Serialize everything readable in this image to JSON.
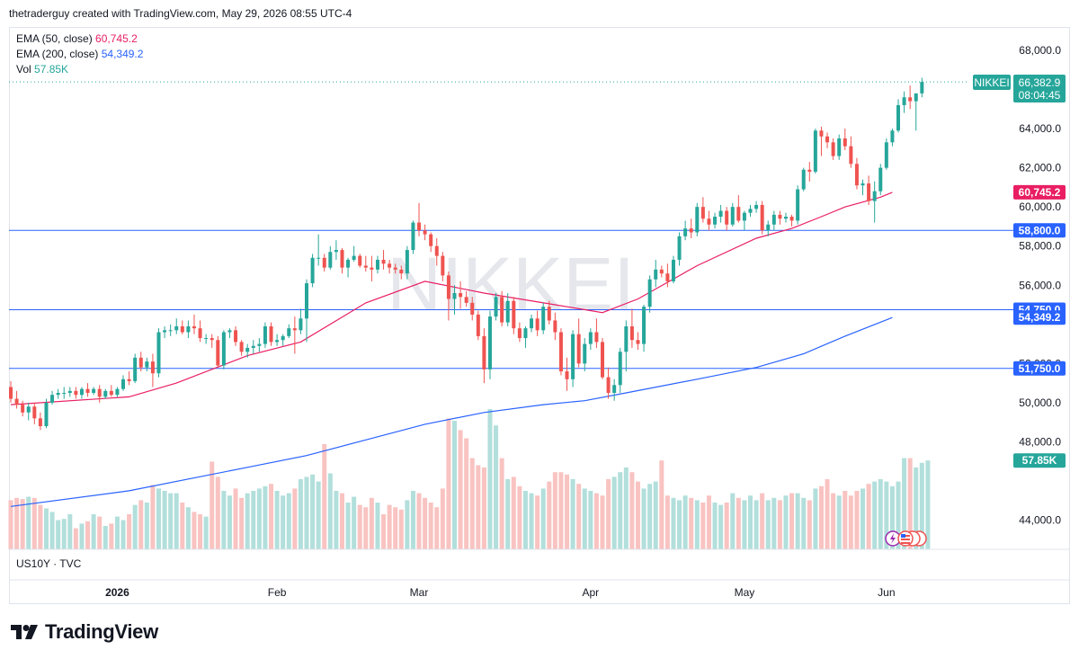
{
  "header": {
    "attribution": "thetraderguy created with TradingView.com, May 29, 2026 08:55 UTC-4"
  },
  "legend": {
    "ema50_label": "EMA (50, close)",
    "ema50_value": "60,745.2",
    "ema50_color": "#e91e63",
    "ema200_label": "EMA (200, close)",
    "ema200_value": "54,349.2",
    "ema200_color": "#2962ff",
    "vol_label": "Vol",
    "vol_value": "57.85K",
    "vol_color": "#26a69a"
  },
  "sub_pane": {
    "label": "US10Y · TVC"
  },
  "watermark": "NIKKEI",
  "brand": {
    "name": "TradingView"
  },
  "price_badge": {
    "symbol": "NIKKEI",
    "price": "66,382.9",
    "countdown": "08:04:45"
  },
  "chart_data": {
    "type": "candlestick",
    "symbol": "NIKKEI",
    "y_axis": {
      "ticks": [
        44000,
        48000,
        50000,
        52000,
        56000,
        58000,
        60000,
        62000,
        64000,
        68000
      ],
      "ylim": [
        43000,
        69000
      ],
      "side": "right"
    },
    "x_axis": {
      "ticks": [
        "2026",
        "Feb",
        "Mar",
        "Apr",
        "May",
        "Jun"
      ]
    },
    "colors": {
      "up": "#26a69a",
      "down": "#ef5350",
      "ema50": "#e91e63",
      "ema200": "#2962ff",
      "hline": "#2962ff"
    },
    "horizontal_lines": [
      {
        "value": 58800,
        "label": "58,800.0"
      },
      {
        "value": 54750,
        "label": "54,750.0"
      },
      {
        "value": 51750,
        "label": "51,750.0"
      }
    ],
    "markers": [
      {
        "value": 60745.2,
        "label": "60,745.2",
        "color": "#e91e63"
      },
      {
        "value": 54349.2,
        "label": "54,349.2",
        "color": "#2962ff"
      },
      {
        "value": 57850,
        "label": "57.85K",
        "color": "#26a69a"
      }
    ],
    "last_price": 66382.9,
    "ohlc": [
      [
        50800,
        51100,
        50000,
        50200
      ],
      [
        50200,
        50600,
        49700,
        49900
      ],
      [
        49900,
        50100,
        49300,
        49500
      ],
      [
        49500,
        50000,
        49100,
        49800
      ],
      [
        49800,
        50000,
        48900,
        49200
      ],
      [
        49200,
        49500,
        48600,
        48800
      ],
      [
        48800,
        50200,
        48700,
        50000
      ],
      [
        50000,
        50600,
        49900,
        50400
      ],
      [
        50400,
        50700,
        50200,
        50500
      ],
      [
        50500,
        50800,
        50200,
        50500
      ],
      [
        50500,
        50800,
        50300,
        50600
      ],
      [
        50600,
        50800,
        50200,
        50400
      ],
      [
        50400,
        50800,
        50200,
        50700
      ],
      [
        50700,
        51000,
        50300,
        50500
      ],
      [
        50500,
        50800,
        50400,
        50700
      ],
      [
        50700,
        50900,
        50000,
        50300
      ],
      [
        50300,
        50700,
        50200,
        50600
      ],
      [
        50600,
        50900,
        50300,
        50400
      ],
      [
        50400,
        50800,
        50300,
        50700
      ],
      [
        50700,
        51400,
        50600,
        51200
      ],
      [
        51200,
        51600,
        50900,
        51100
      ],
      [
        51100,
        52500,
        51000,
        52300
      ],
      [
        52300,
        52600,
        51600,
        51800
      ],
      [
        51800,
        52300,
        51600,
        52100
      ],
      [
        52100,
        52500,
        50800,
        51500
      ],
      [
        51500,
        53800,
        51300,
        53600
      ],
      [
        53600,
        53900,
        53300,
        53700
      ],
      [
        53700,
        54000,
        53400,
        53700
      ],
      [
        53700,
        54300,
        53500,
        53900
      ],
      [
        53900,
        54200,
        53500,
        53600
      ],
      [
        53600,
        54200,
        53300,
        53900
      ],
      [
        53900,
        54500,
        53500,
        53800
      ],
      [
        53800,
        54200,
        53100,
        53300
      ],
      [
        53300,
        53500,
        53000,
        53300
      ],
      [
        53300,
        53500,
        52800,
        53200
      ],
      [
        53200,
        53400,
        51800,
        51900
      ],
      [
        51900,
        53700,
        51700,
        53600
      ],
      [
        53600,
        53800,
        53300,
        53700
      ],
      [
        53700,
        53900,
        52900,
        53100
      ],
      [
        53100,
        53200,
        52400,
        52600
      ],
      [
        52600,
        53000,
        52300,
        52800
      ],
      [
        52800,
        53200,
        52500,
        52900
      ],
      [
        52900,
        53300,
        52600,
        53000
      ],
      [
        53000,
        54100,
        52800,
        53900
      ],
      [
        53900,
        54100,
        52900,
        53100
      ],
      [
        53100,
        53500,
        52900,
        53200
      ],
      [
        53200,
        53500,
        52900,
        53400
      ],
      [
        53400,
        54000,
        53300,
        53800
      ],
      [
        53800,
        54400,
        52500,
        53700
      ],
      [
        53700,
        54800,
        53500,
        54300
      ],
      [
        54300,
        56300,
        53100,
        56100
      ],
      [
        56100,
        57600,
        55900,
        57400
      ],
      [
        57400,
        58600,
        57000,
        57400
      ],
      [
        57400,
        57600,
        56700,
        56900
      ],
      [
        56900,
        58000,
        56800,
        57700
      ],
      [
        57700,
        58300,
        57300,
        57800
      ],
      [
        57800,
        57900,
        56600,
        56900
      ],
      [
        56900,
        57400,
        56400,
        57300
      ],
      [
        57300,
        58000,
        57200,
        57500
      ],
      [
        57500,
        57600,
        56900,
        57000
      ],
      [
        57000,
        57500,
        56700,
        56900
      ],
      [
        56900,
        57500,
        56200,
        56800
      ],
      [
        56800,
        57500,
        56600,
        57300
      ],
      [
        57300,
        57800,
        56800,
        57100
      ],
      [
        57100,
        57300,
        56600,
        56900
      ],
      [
        56900,
        57100,
        56600,
        56800
      ],
      [
        56800,
        57000,
        56300,
        56600
      ],
      [
        56600,
        58000,
        56300,
        57800
      ],
      [
        57800,
        59300,
        57600,
        59200
      ],
      [
        59200,
        60200,
        58500,
        58800
      ],
      [
        58800,
        59100,
        58300,
        58600
      ],
      [
        58600,
        58700,
        57700,
        58000
      ],
      [
        58000,
        58400,
        57000,
        57500
      ],
      [
        57500,
        57700,
        56200,
        56500
      ],
      [
        56500,
        56700,
        54200,
        55300
      ],
      [
        55300,
        56000,
        54500,
        55600
      ],
      [
        55600,
        56200,
        54800,
        55400
      ],
      [
        55400,
        55700,
        54900,
        55100
      ],
      [
        55100,
        55400,
        54200,
        54500
      ],
      [
        54500,
        54700,
        53200,
        53400
      ],
      [
        53400,
        53800,
        51000,
        51700
      ],
      [
        51700,
        54700,
        51200,
        54400
      ],
      [
        54400,
        55600,
        54200,
        55400
      ],
      [
        55400,
        55700,
        53900,
        54100
      ],
      [
        54100,
        55600,
        53900,
        55200
      ],
      [
        55200,
        55400,
        53500,
        53800
      ],
      [
        53800,
        54100,
        53100,
        53300
      ],
      [
        53300,
        53900,
        52800,
        53800
      ],
      [
        53800,
        54500,
        53600,
        54300
      ],
      [
        54300,
        54700,
        53400,
        53700
      ],
      [
        53700,
        55100,
        53500,
        54900
      ],
      [
        54900,
        55200,
        54000,
        54200
      ],
      [
        54200,
        54600,
        53200,
        53600
      ],
      [
        53600,
        53800,
        51400,
        51600
      ],
      [
        51600,
        52300,
        50600,
        51200
      ],
      [
        51200,
        53700,
        50800,
        53500
      ],
      [
        53500,
        54300,
        51800,
        52000
      ],
      [
        52000,
        53300,
        51600,
        53000
      ],
      [
        53000,
        53800,
        52700,
        53600
      ],
      [
        53600,
        54300,
        52800,
        53100
      ],
      [
        53100,
        53300,
        51200,
        51300
      ],
      [
        51300,
        51800,
        50200,
        50500
      ],
      [
        50500,
        51200,
        50100,
        50900
      ],
      [
        50900,
        52800,
        50500,
        52600
      ],
      [
        52600,
        54200,
        51600,
        53900
      ],
      [
        53900,
        54800,
        52800,
        53200
      ],
      [
        53200,
        53600,
        52700,
        53000
      ],
      [
        53000,
        55000,
        52600,
        54900
      ],
      [
        54900,
        56500,
        54600,
        56300
      ],
      [
        56300,
        57300,
        55900,
        56800
      ],
      [
        56800,
        57000,
        56400,
        56600
      ],
      [
        56600,
        57100,
        55900,
        56200
      ],
      [
        56200,
        57500,
        56100,
        57300
      ],
      [
        57300,
        58700,
        57000,
        58500
      ],
      [
        58500,
        59300,
        58300,
        58900
      ],
      [
        58900,
        59400,
        58400,
        58700
      ],
      [
        58700,
        60200,
        58500,
        60000
      ],
      [
        60000,
        60500,
        59200,
        59400
      ],
      [
        59400,
        59800,
        58800,
        59100
      ],
      [
        59100,
        59700,
        58900,
        59500
      ],
      [
        59500,
        60100,
        59200,
        59800
      ],
      [
        59800,
        60000,
        58800,
        59100
      ],
      [
        59100,
        60200,
        59000,
        60000
      ],
      [
        60000,
        60600,
        59200,
        59300
      ],
      [
        59300,
        59800,
        58800,
        59700
      ],
      [
        59700,
        60100,
        59500,
        59900
      ],
      [
        59900,
        60300,
        59700,
        60100
      ],
      [
        60100,
        60300,
        58600,
        58800
      ],
      [
        58800,
        59300,
        58500,
        59100
      ],
      [
        59100,
        59800,
        58800,
        59600
      ],
      [
        59600,
        59800,
        59100,
        59400
      ],
      [
        59400,
        59700,
        59200,
        59500
      ],
      [
        59500,
        59600,
        59000,
        59300
      ],
      [
        59300,
        61100,
        59100,
        60900
      ],
      [
        60900,
        62000,
        60800,
        61900
      ],
      [
        61900,
        62300,
        61300,
        61800
      ],
      [
        61800,
        64000,
        61700,
        63900
      ],
      [
        63900,
        64100,
        62600,
        63600
      ],
      [
        63600,
        63800,
        63000,
        63300
      ],
      [
        63300,
        63500,
        62400,
        62600
      ],
      [
        62600,
        63700,
        62400,
        63500
      ],
      [
        63500,
        64000,
        62900,
        63100
      ],
      [
        63100,
        63600,
        62000,
        62200
      ],
      [
        62200,
        62500,
        60900,
        61100
      ],
      [
        61100,
        61400,
        60600,
        61200
      ],
      [
        61200,
        61600,
        60100,
        60300
      ],
      [
        60300,
        61300,
        59200,
        60800
      ],
      [
        60800,
        62200,
        60600,
        62000
      ],
      [
        62000,
        63500,
        61900,
        63300
      ],
      [
        63300,
        64000,
        63100,
        63900
      ],
      [
        63900,
        65500,
        63800,
        65200
      ],
      [
        65200,
        65900,
        64800,
        65600
      ],
      [
        65600,
        66200,
        65000,
        65400
      ],
      [
        65400,
        65800,
        63900,
        65800
      ],
      [
        65800,
        66600,
        65600,
        66382.9
      ]
    ],
    "volumes": [
      0.42,
      0.44,
      0.43,
      0.45,
      0.44,
      0.38,
      0.35,
      0.32,
      0.25,
      0.26,
      0.3,
      0.18,
      0.22,
      0.24,
      0.3,
      0.28,
      0.2,
      0.22,
      0.28,
      0.25,
      0.3,
      0.38,
      0.42,
      0.4,
      0.55,
      0.52,
      0.5,
      0.48,
      0.48,
      0.4,
      0.36,
      0.32,
      0.3,
      0.28,
      0.75,
      0.62,
      0.5,
      0.46,
      0.52,
      0.44,
      0.48,
      0.5,
      0.52,
      0.54,
      0.56,
      0.5,
      0.46,
      0.48,
      0.52,
      0.6,
      0.62,
      0.64,
      0.58,
      0.9,
      0.65,
      0.5,
      0.48,
      0.4,
      0.45,
      0.38,
      0.36,
      0.44,
      0.4,
      0.3,
      0.38,
      0.36,
      0.34,
      0.42,
      0.5,
      0.48,
      0.44,
      0.4,
      0.36,
      0.52,
      1.12,
      1.1,
      1.02,
      0.95,
      0.78,
      0.72,
      0.7,
      1.2,
      1.06,
      0.78,
      0.6,
      0.62,
      0.54,
      0.5,
      0.48,
      0.46,
      0.52,
      0.58,
      0.66,
      0.66,
      0.64,
      0.6,
      0.56,
      0.52,
      0.5,
      0.48,
      0.46,
      0.6,
      0.62,
      0.66,
      0.7,
      0.66,
      0.58,
      0.52,
      0.56,
      0.58,
      0.76,
      0.46,
      0.44,
      0.42,
      0.46,
      0.44,
      0.42,
      0.4,
      0.46,
      0.4,
      0.38,
      0.4,
      0.48,
      0.44,
      0.42,
      0.46,
      0.42,
      0.48,
      0.42,
      0.44,
      0.42,
      0.46,
      0.48,
      0.48,
      0.44,
      0.42,
      0.52,
      0.54,
      0.6,
      0.48,
      0.46,
      0.5,
      0.46,
      0.5,
      0.52,
      0.56,
      0.58,
      0.6,
      0.58,
      0.54,
      0.58,
      0.78,
      0.78,
      0.7,
      0.74,
      0.76
    ],
    "ema50": [
      [
        0,
        49900
      ],
      [
        20,
        50300
      ],
      [
        28,
        51000
      ],
      [
        40,
        52400
      ],
      [
        49,
        53100
      ],
      [
        60,
        55100
      ],
      [
        70,
        56200
      ],
      [
        80,
        55600
      ],
      [
        92,
        55000
      ],
      [
        100,
        54600
      ],
      [
        106,
        55300
      ],
      [
        116,
        57000
      ],
      [
        126,
        58400
      ],
      [
        132,
        58900
      ],
      [
        137,
        59500
      ],
      [
        141,
        60000
      ],
      [
        147,
        60500
      ],
      [
        149,
        60745.2
      ]
    ],
    "ema200": [
      [
        0,
        44700
      ],
      [
        20,
        45500
      ],
      [
        40,
        46700
      ],
      [
        50,
        47300
      ],
      [
        60,
        48100
      ],
      [
        70,
        48900
      ],
      [
        80,
        49500
      ],
      [
        90,
        49900
      ],
      [
        97,
        50100
      ],
      [
        104,
        50500
      ],
      [
        116,
        51200
      ],
      [
        126,
        51800
      ],
      [
        134,
        52500
      ],
      [
        141,
        53400
      ],
      [
        149,
        54349.2
      ]
    ]
  }
}
